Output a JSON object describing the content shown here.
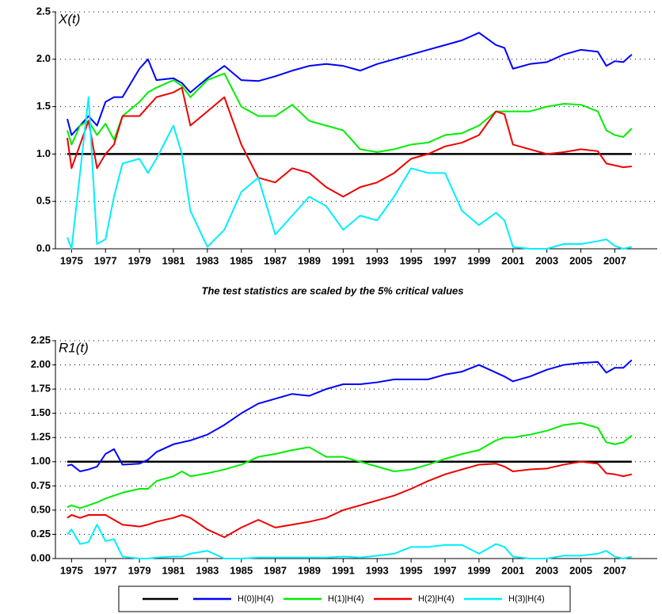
{
  "chart_data": [
    {
      "type": "line",
      "panel_label": "X(t)",
      "annotation": "The test statistics are scaled by the 5% critical values",
      "x": [
        1974.75,
        1975,
        1975.5,
        1976,
        1976.5,
        1977,
        1977.5,
        1978,
        1979,
        1979.5,
        1980,
        1981,
        1981.5,
        1982,
        1983,
        1984,
        1985,
        1986,
        1987,
        1988,
        1989,
        1990,
        1991,
        1992,
        1993,
        1994,
        1995,
        1996,
        1997,
        1998,
        1999,
        2000,
        2000.5,
        2001,
        2002,
        2003,
        2004,
        2005,
        2006,
        2006.5,
        2007,
        2007.5,
        2008
      ],
      "xlim": [
        1974.05,
        2009.5
      ],
      "xticks": [
        1975,
        1977,
        1979,
        1981,
        1983,
        1985,
        1987,
        1989,
        1991,
        1993,
        1995,
        1997,
        1999,
        2001,
        2003,
        2005,
        2007
      ],
      "ylim": [
        0,
        2.5
      ],
      "yticks": [
        {
          "value": 0,
          "label": "0.0"
        },
        0.5,
        {
          "value": 1,
          "label": "1.0"
        },
        1.5,
        {
          "value": 2,
          "label": "2.0"
        },
        2.5
      ],
      "grid": true,
      "hline": {
        "value": 1,
        "color": "#000000"
      },
      "series": [
        {
          "color": "#0000ff",
          "values": [
            1.37,
            1.2,
            1.3,
            1.4,
            1.3,
            1.55,
            1.6,
            1.6,
            1.9,
            2.0,
            1.78,
            1.8,
            1.75,
            1.65,
            1.8,
            1.93,
            1.78,
            1.77,
            1.82,
            1.88,
            1.93,
            1.95,
            1.93,
            1.88,
            1.95,
            2.0,
            2.05,
            2.1,
            2.15,
            2.2,
            2.28,
            2.15,
            2.12,
            1.9,
            1.95,
            1.97,
            2.05,
            2.1,
            2.08,
            1.93,
            1.98,
            1.97,
            2.05
          ]
        },
        {
          "color": "#00ee00",
          "values": [
            1.25,
            1.1,
            1.3,
            1.35,
            1.2,
            1.32,
            1.15,
            1.4,
            1.55,
            1.65,
            1.7,
            1.78,
            1.72,
            1.6,
            1.78,
            1.85,
            1.5,
            1.4,
            1.4,
            1.52,
            1.35,
            1.3,
            1.25,
            1.05,
            1.02,
            1.05,
            1.1,
            1.12,
            1.2,
            1.22,
            1.3,
            1.45,
            1.45,
            1.45,
            1.45,
            1.5,
            1.53,
            1.52,
            1.45,
            1.25,
            1.2,
            1.18,
            1.27
          ]
        },
        {
          "color": "#ee0000",
          "values": [
            1.17,
            0.85,
            1.1,
            1.35,
            0.85,
            1.0,
            1.1,
            1.4,
            1.4,
            1.5,
            1.6,
            1.65,
            1.7,
            1.3,
            1.45,
            1.6,
            1.1,
            0.75,
            0.7,
            0.85,
            0.8,
            0.65,
            0.55,
            0.65,
            0.7,
            0.8,
            0.95,
            1.0,
            1.08,
            1.12,
            1.2,
            1.45,
            1.42,
            1.1,
            1.05,
            1.0,
            1.02,
            1.05,
            1.03,
            0.9,
            0.88,
            0.86,
            0.87
          ]
        },
        {
          "color": "#00eeff",
          "values": [
            0.12,
            0.0,
            0.8,
            1.6,
            0.05,
            0.1,
            0.55,
            0.9,
            0.95,
            0.8,
            0.95,
            1.3,
            1.0,
            0.4,
            0.02,
            0.2,
            0.6,
            0.75,
            0.15,
            0.35,
            0.55,
            0.45,
            0.2,
            0.35,
            0.3,
            0.55,
            0.85,
            0.8,
            0.8,
            0.4,
            0.25,
            0.38,
            0.3,
            0.02,
            0.0,
            0.0,
            0.05,
            0.05,
            0.08,
            0.1,
            0.03,
            0.0,
            0.02
          ]
        }
      ]
    },
    {
      "type": "line",
      "panel_label": "R1(t)",
      "x": [
        1974.75,
        1975,
        1975.5,
        1976,
        1976.5,
        1977,
        1977.5,
        1978,
        1979,
        1979.5,
        1980,
        1981,
        1981.5,
        1982,
        1983,
        1984,
        1985,
        1986,
        1987,
        1988,
        1989,
        1990,
        1991,
        1992,
        1993,
        1994,
        1995,
        1996,
        1997,
        1998,
        1999,
        2000,
        2000.5,
        2001,
        2002,
        2003,
        2004,
        2005,
        2006,
        2006.5,
        2007,
        2007.5,
        2008
      ],
      "xlim": [
        1974.05,
        2009.5
      ],
      "xticks": [
        1975,
        1977,
        1979,
        1981,
        1983,
        1985,
        1987,
        1989,
        1991,
        1993,
        1995,
        1997,
        1999,
        2001,
        2003,
        2005,
        2007
      ],
      "ylim": [
        0,
        2.25
      ],
      "yticks": [
        {
          "value": 0,
          "label": "0.00"
        },
        0.25,
        {
          "value": 0.5,
          "label": "0.50"
        },
        0.75,
        {
          "value": 1,
          "label": "1.00"
        },
        1.25,
        {
          "value": 1.5,
          "label": "1.50"
        },
        1.75,
        {
          "value": 2,
          "label": "2.00"
        },
        2.25
      ],
      "grid": true,
      "hline": {
        "value": 1,
        "color": "#000000"
      },
      "legend": "bottom",
      "series": [
        {
          "name": "H(0)|H(4)",
          "color": "#0000ff",
          "values": [
            0.96,
            0.97,
            0.9,
            0.92,
            0.95,
            1.08,
            1.13,
            0.97,
            0.98,
            1.02,
            1.1,
            1.18,
            1.2,
            1.22,
            1.28,
            1.38,
            1.5,
            1.6,
            1.65,
            1.7,
            1.68,
            1.75,
            1.8,
            1.8,
            1.82,
            1.85,
            1.85,
            1.85,
            1.9,
            1.93,
            2.0,
            1.92,
            1.88,
            1.83,
            1.88,
            1.95,
            2.0,
            2.02,
            2.03,
            1.92,
            1.97,
            1.97,
            2.05
          ]
        },
        {
          "name": "H(1)|H(4)",
          "color": "#00ee00",
          "values": [
            0.53,
            0.55,
            0.52,
            0.55,
            0.58,
            0.62,
            0.65,
            0.68,
            0.72,
            0.72,
            0.8,
            0.85,
            0.9,
            0.85,
            0.88,
            0.92,
            0.97,
            1.05,
            1.08,
            1.12,
            1.15,
            1.05,
            1.05,
            1.0,
            0.95,
            0.9,
            0.92,
            0.97,
            1.03,
            1.08,
            1.12,
            1.22,
            1.25,
            1.25,
            1.28,
            1.32,
            1.38,
            1.4,
            1.35,
            1.2,
            1.18,
            1.2,
            1.27
          ]
        },
        {
          "name": "H(2)|H(4)",
          "color": "#ee0000",
          "values": [
            0.42,
            0.45,
            0.42,
            0.45,
            0.45,
            0.45,
            0.4,
            0.35,
            0.33,
            0.35,
            0.38,
            0.42,
            0.45,
            0.42,
            0.3,
            0.22,
            0.32,
            0.4,
            0.32,
            0.35,
            0.38,
            0.42,
            0.5,
            0.55,
            0.6,
            0.65,
            0.72,
            0.8,
            0.87,
            0.92,
            0.97,
            0.98,
            0.95,
            0.9,
            0.92,
            0.93,
            0.97,
            1.0,
            0.98,
            0.88,
            0.87,
            0.85,
            0.87
          ]
        },
        {
          "name": "H(3)|H(4)",
          "color": "#00eeff",
          "values": [
            0.25,
            0.3,
            0.15,
            0.17,
            0.35,
            0.18,
            0.2,
            0.02,
            0.0,
            0.0,
            0.01,
            0.02,
            0.02,
            0.05,
            0.08,
            0.0,
            0.0,
            0.01,
            0.01,
            0.01,
            0.01,
            0.01,
            0.02,
            0.01,
            0.03,
            0.05,
            0.12,
            0.12,
            0.14,
            0.14,
            0.05,
            0.15,
            0.12,
            0.02,
            0.0,
            0.0,
            0.03,
            0.03,
            0.05,
            0.08,
            0.02,
            0.0,
            0.02
          ]
        }
      ]
    }
  ]
}
